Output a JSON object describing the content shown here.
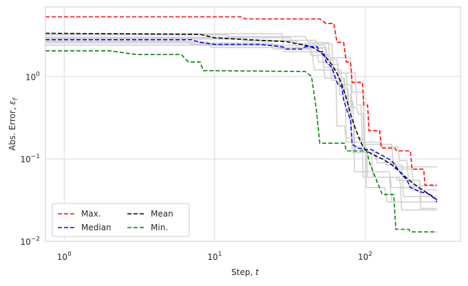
{
  "chart_data": {
    "type": "line",
    "title": "",
    "xlabel": "Step, ",
    "xlabel_symbol": "t",
    "ylabel": "Abs. Error, ",
    "ylabel_symbol": "ε",
    "ylabel_subscript": "f",
    "xscale": "log",
    "yscale": "log",
    "xlim": [
      0.75,
      430
    ],
    "ylim": [
      0.01,
      7
    ],
    "xticks": [
      {
        "value": 1,
        "base": "10",
        "exp": "0"
      },
      {
        "value": 10,
        "base": "10",
        "exp": "1"
      },
      {
        "value": 100,
        "base": "10",
        "exp": "2"
      }
    ],
    "yticks": [
      {
        "value": 0.01,
        "base": "10",
        "exp": "−2"
      },
      {
        "value": 0.1,
        "base": "10",
        "exp": "−1"
      },
      {
        "value": 1,
        "base": "10",
        "exp": "0"
      }
    ],
    "grid": true,
    "legend_position": "lower-left",
    "legend_columns": 2,
    "series": [
      {
        "name": "Max.",
        "color": "#ff0000",
        "dashed": true,
        "points": [
          [
            0.75,
            5.3
          ],
          [
            15,
            5.3
          ],
          [
            16,
            5.0
          ],
          [
            50,
            5.0
          ],
          [
            55,
            4.4
          ],
          [
            62,
            4.4
          ],
          [
            65,
            2.6
          ],
          [
            72,
            2.6
          ],
          [
            75,
            1.5
          ],
          [
            80,
            1.5
          ],
          [
            82,
            0.85
          ],
          [
            96,
            0.85
          ],
          [
            98,
            0.45
          ],
          [
            104,
            0.45
          ],
          [
            106,
            0.22
          ],
          [
            125,
            0.22
          ],
          [
            128,
            0.135
          ],
          [
            158,
            0.135
          ],
          [
            162,
            0.125
          ],
          [
            200,
            0.125
          ],
          [
            205,
            0.075
          ],
          [
            245,
            0.075
          ],
          [
            250,
            0.048
          ],
          [
            300,
            0.048
          ]
        ]
      },
      {
        "name": "Mean",
        "color": "#000000",
        "dashed": true,
        "points": [
          [
            0.75,
            3.35
          ],
          [
            8,
            3.25
          ],
          [
            10,
            2.95
          ],
          [
            14,
            2.85
          ],
          [
            20,
            2.75
          ],
          [
            30,
            2.65
          ],
          [
            40,
            2.4
          ],
          [
            45,
            2.25
          ],
          [
            50,
            2.0
          ],
          [
            55,
            1.7
          ],
          [
            60,
            1.4
          ],
          [
            65,
            1.1
          ],
          [
            70,
            0.8
          ],
          [
            75,
            0.55
          ],
          [
            80,
            0.35
          ],
          [
            85,
            0.25
          ],
          [
            90,
            0.19
          ],
          [
            95,
            0.15
          ],
          [
            100,
            0.13
          ],
          [
            110,
            0.115
          ],
          [
            130,
            0.1
          ],
          [
            150,
            0.085
          ],
          [
            170,
            0.07
          ],
          [
            190,
            0.058
          ],
          [
            210,
            0.05
          ],
          [
            240,
            0.042
          ],
          [
            270,
            0.037
          ],
          [
            300,
            0.032
          ]
        ]
      },
      {
        "name": "Median",
        "color": "#0000ff",
        "dashed": true,
        "points": [
          [
            0.75,
            2.8
          ],
          [
            7,
            2.8
          ],
          [
            8,
            2.6
          ],
          [
            10,
            2.45
          ],
          [
            20,
            2.45
          ],
          [
            28,
            2.3
          ],
          [
            30,
            2.15
          ],
          [
            38,
            2.15
          ],
          [
            40,
            2.3
          ],
          [
            48,
            2.3
          ],
          [
            50,
            2.0
          ],
          [
            53,
            2.0
          ],
          [
            55,
            1.5
          ],
          [
            60,
            1.3
          ],
          [
            63,
            1.0
          ],
          [
            66,
            0.8
          ],
          [
            70,
            0.75
          ],
          [
            72,
            0.52
          ],
          [
            76,
            0.38
          ],
          [
            80,
            0.3
          ],
          [
            82,
            0.15
          ],
          [
            90,
            0.135
          ],
          [
            100,
            0.13
          ],
          [
            105,
            0.13
          ],
          [
            110,
            0.13
          ],
          [
            130,
            0.11
          ],
          [
            150,
            0.095
          ],
          [
            175,
            0.065
          ],
          [
            190,
            0.055
          ],
          [
            200,
            0.045
          ],
          [
            230,
            0.04
          ],
          [
            260,
            0.038
          ],
          [
            290,
            0.033
          ],
          [
            300,
            0.03
          ]
        ]
      },
      {
        "name": "Min.",
        "color": "#008000",
        "dashed": true,
        "points": [
          [
            0.75,
            2.05
          ],
          [
            2,
            2.05
          ],
          [
            3,
            1.85
          ],
          [
            6,
            1.85
          ],
          [
            6.7,
            1.5
          ],
          [
            8,
            1.5
          ],
          [
            8.4,
            1.18
          ],
          [
            40,
            1.15
          ],
          [
            44,
            1.0
          ],
          [
            47,
            0.45
          ],
          [
            50,
            0.155
          ],
          [
            73,
            0.155
          ],
          [
            75,
            0.125
          ],
          [
            103,
            0.125
          ],
          [
            106,
            0.095
          ],
          [
            113,
            0.07
          ],
          [
            130,
            0.037
          ],
          [
            155,
            0.037
          ],
          [
            160,
            0.014
          ],
          [
            195,
            0.014
          ],
          [
            200,
            0.013
          ],
          [
            300,
            0.013
          ]
        ]
      }
    ],
    "background_series": [
      [
        [
          0.75,
          2.85
        ],
        [
          15,
          2.85
        ],
        [
          15.5,
          2.7
        ],
        [
          35,
          2.7
        ],
        [
          36,
          2.4
        ],
        [
          54,
          2.4
        ],
        [
          56,
          1.4
        ],
        [
          66,
          1.4
        ],
        [
          68,
          0.8
        ],
        [
          80,
          0.8
        ],
        [
          82,
          0.42
        ],
        [
          88,
          0.42
        ],
        [
          90,
          0.35
        ],
        [
          97,
          0.35
        ],
        [
          99,
          0.12
        ],
        [
          118,
          0.12
        ],
        [
          120,
          0.09
        ],
        [
          158,
          0.09
        ],
        [
          160,
          0.08
        ],
        [
          300,
          0.08
        ]
      ],
      [
        [
          0.75,
          3.3
        ],
        [
          28,
          3.3
        ],
        [
          29,
          2.0
        ],
        [
          52,
          2.0
        ],
        [
          53,
          1.3
        ],
        [
          60,
          1.3
        ],
        [
          62,
          0.95
        ],
        [
          73,
          0.95
        ],
        [
          75,
          0.18
        ],
        [
          95,
          0.18
        ],
        [
          97,
          0.06
        ],
        [
          160,
          0.06
        ],
        [
          165,
          0.055
        ],
        [
          230,
          0.055
        ],
        [
          235,
          0.03
        ],
        [
          300,
          0.03
        ]
      ],
      [
        [
          0.75,
          2.55
        ],
        [
          24,
          2.55
        ],
        [
          24.5,
          2.15
        ],
        [
          44,
          2.15
        ],
        [
          46,
          1.2
        ],
        [
          69,
          1.2
        ],
        [
          70,
          0.7
        ],
        [
          77,
          0.7
        ],
        [
          78,
          0.3
        ],
        [
          84,
          0.3
        ],
        [
          86,
          0.12
        ],
        [
          115,
          0.12
        ],
        [
          117,
          0.1
        ],
        [
          135,
          0.1
        ],
        [
          137,
          0.085
        ],
        [
          175,
          0.085
        ],
        [
          180,
          0.035
        ],
        [
          300,
          0.035
        ]
      ],
      [
        [
          0.75,
          3.2
        ],
        [
          12,
          3.2
        ],
        [
          12.5,
          3.05
        ],
        [
          40,
          3.05
        ],
        [
          42,
          2.6
        ],
        [
          57,
          2.6
        ],
        [
          58,
          1.7
        ],
        [
          80,
          1.7
        ],
        [
          82,
          0.65
        ],
        [
          97,
          0.65
        ],
        [
          99,
          0.16
        ],
        [
          128,
          0.16
        ],
        [
          130,
          0.14
        ],
        [
          165,
          0.14
        ],
        [
          170,
          0.095
        ],
        [
          190,
          0.095
        ],
        [
          195,
          0.047
        ],
        [
          300,
          0.047
        ]
      ],
      [
        [
          0.75,
          2.65
        ],
        [
          9,
          2.65
        ],
        [
          9.5,
          2.25
        ],
        [
          55,
          2.25
        ],
        [
          57,
          1.6
        ],
        [
          65,
          1.6
        ],
        [
          67,
          1.1
        ],
        [
          75,
          1.1
        ],
        [
          77,
          0.42
        ],
        [
          83,
          0.42
        ],
        [
          85,
          0.14
        ],
        [
          102,
          0.14
        ],
        [
          104,
          0.06
        ],
        [
          145,
          0.06
        ],
        [
          150,
          0.03
        ],
        [
          300,
          0.03
        ]
      ],
      [
        [
          0.75,
          3.0
        ],
        [
          16,
          3.0
        ],
        [
          16.5,
          2.75
        ],
        [
          47,
          2.75
        ],
        [
          49,
          1.5
        ],
        [
          58,
          1.5
        ],
        [
          60,
          0.9
        ],
        [
          64,
          0.9
        ],
        [
          65,
          0.25
        ],
        [
          73,
          0.25
        ],
        [
          75,
          0.16
        ],
        [
          100,
          0.16
        ],
        [
          102,
          0.045
        ],
        [
          135,
          0.045
        ],
        [
          140,
          0.03
        ],
        [
          300,
          0.03
        ]
      ],
      [
        [
          0.75,
          2.95
        ],
        [
          32,
          2.95
        ],
        [
          33,
          2.5
        ],
        [
          60,
          2.5
        ],
        [
          62,
          1.1
        ],
        [
          86,
          1.1
        ],
        [
          88,
          0.45
        ],
        [
          94,
          0.45
        ],
        [
          96,
          0.15
        ],
        [
          150,
          0.15
        ],
        [
          155,
          0.075
        ],
        [
          205,
          0.075
        ],
        [
          210,
          0.042
        ],
        [
          300,
          0.042
        ]
      ],
      [
        [
          0.75,
          2.4
        ],
        [
          35,
          2.4
        ],
        [
          36,
          2.2
        ],
        [
          52,
          2.2
        ],
        [
          54,
          0.95
        ],
        [
          72,
          0.95
        ],
        [
          74,
          0.5
        ],
        [
          83,
          0.5
        ],
        [
          85,
          0.07
        ],
        [
          145,
          0.07
        ],
        [
          150,
          0.045
        ],
        [
          230,
          0.045
        ],
        [
          235,
          0.025
        ],
        [
          300,
          0.025
        ]
      ],
      [
        [
          0.75,
          2.7
        ],
        [
          6.5,
          2.7
        ],
        [
          7,
          2.45
        ],
        [
          26,
          2.45
        ],
        [
          27,
          2.2
        ],
        [
          42,
          2.2
        ],
        [
          44,
          1.8
        ],
        [
          58,
          1.8
        ],
        [
          60,
          1.25
        ],
        [
          66,
          1.25
        ],
        [
          68,
          0.6
        ],
        [
          80,
          0.6
        ],
        [
          82,
          0.12
        ],
        [
          110,
          0.12
        ],
        [
          113,
          0.06
        ],
        [
          170,
          0.06
        ],
        [
          175,
          0.024
        ],
        [
          300,
          0.024
        ]
      ]
    ],
    "background_color": "#cfcfcf"
  }
}
